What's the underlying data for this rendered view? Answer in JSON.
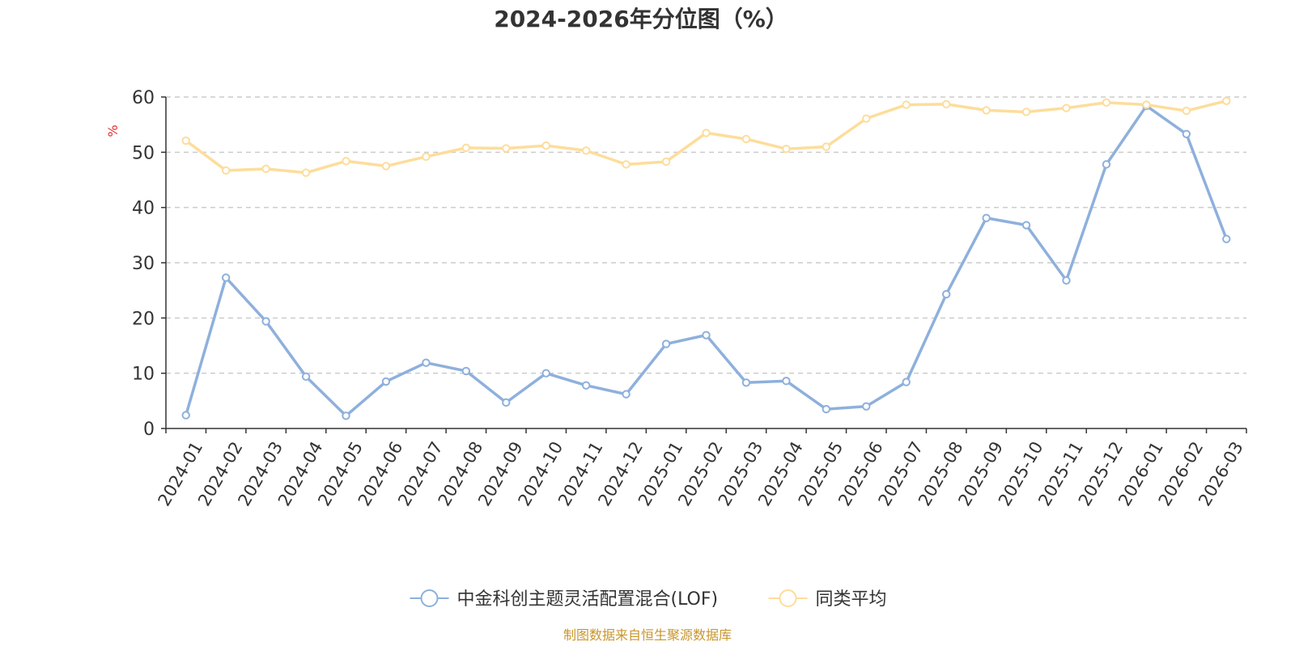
{
  "chart_data": {
    "type": "line",
    "title": "2024-2026年分位图（%）",
    "ylabel": "%",
    "xlabel": "",
    "ylim": [
      0,
      60
    ],
    "yticks": [
      0,
      10,
      20,
      30,
      40,
      50,
      60
    ],
    "grid": true,
    "legend_position": "bottom-center",
    "categories": [
      "2024-01",
      "2024-02",
      "2024-03",
      "2024-04",
      "2024-05",
      "2024-06",
      "2024-07",
      "2024-08",
      "2024-09",
      "2024-10",
      "2024-11",
      "2024-12",
      "2025-01",
      "2025-02",
      "2025-03",
      "2025-04",
      "2025-05",
      "2025-06",
      "2025-07",
      "2025-08",
      "2025-09",
      "2025-10",
      "2025-11",
      "2025-12",
      "2026-01",
      "2026-02",
      "2026-03"
    ],
    "series": [
      {
        "name": "中金科创主题灵活配置混合(LOF)",
        "color": "#8eb0dc",
        "values": [
          2.4,
          27.3,
          19.4,
          9.4,
          2.3,
          8.5,
          11.9,
          10.4,
          4.7,
          10.0,
          7.8,
          6.2,
          15.3,
          16.9,
          8.3,
          8.6,
          3.5,
          4.0,
          8.4,
          24.3,
          38.1,
          36.8,
          26.8,
          47.8,
          58.4,
          53.3,
          34.3
        ]
      },
      {
        "name": "同类平均",
        "color": "#fddd9b",
        "values": [
          52.1,
          46.7,
          47.0,
          46.3,
          48.4,
          47.5,
          49.2,
          50.8,
          50.7,
          51.2,
          50.3,
          47.8,
          48.3,
          53.5,
          52.4,
          50.6,
          51.0,
          56.1,
          58.6,
          58.7,
          57.6,
          57.3,
          58.0,
          59.0,
          58.6,
          57.5,
          59.3
        ]
      }
    ],
    "source_text": "制图数据来自恒生聚源数据库"
  },
  "colors": {
    "title": "#333333",
    "axis": "#333333",
    "grid": "#cccccc",
    "ylabel": "#e03030",
    "source": "#c8962d"
  }
}
